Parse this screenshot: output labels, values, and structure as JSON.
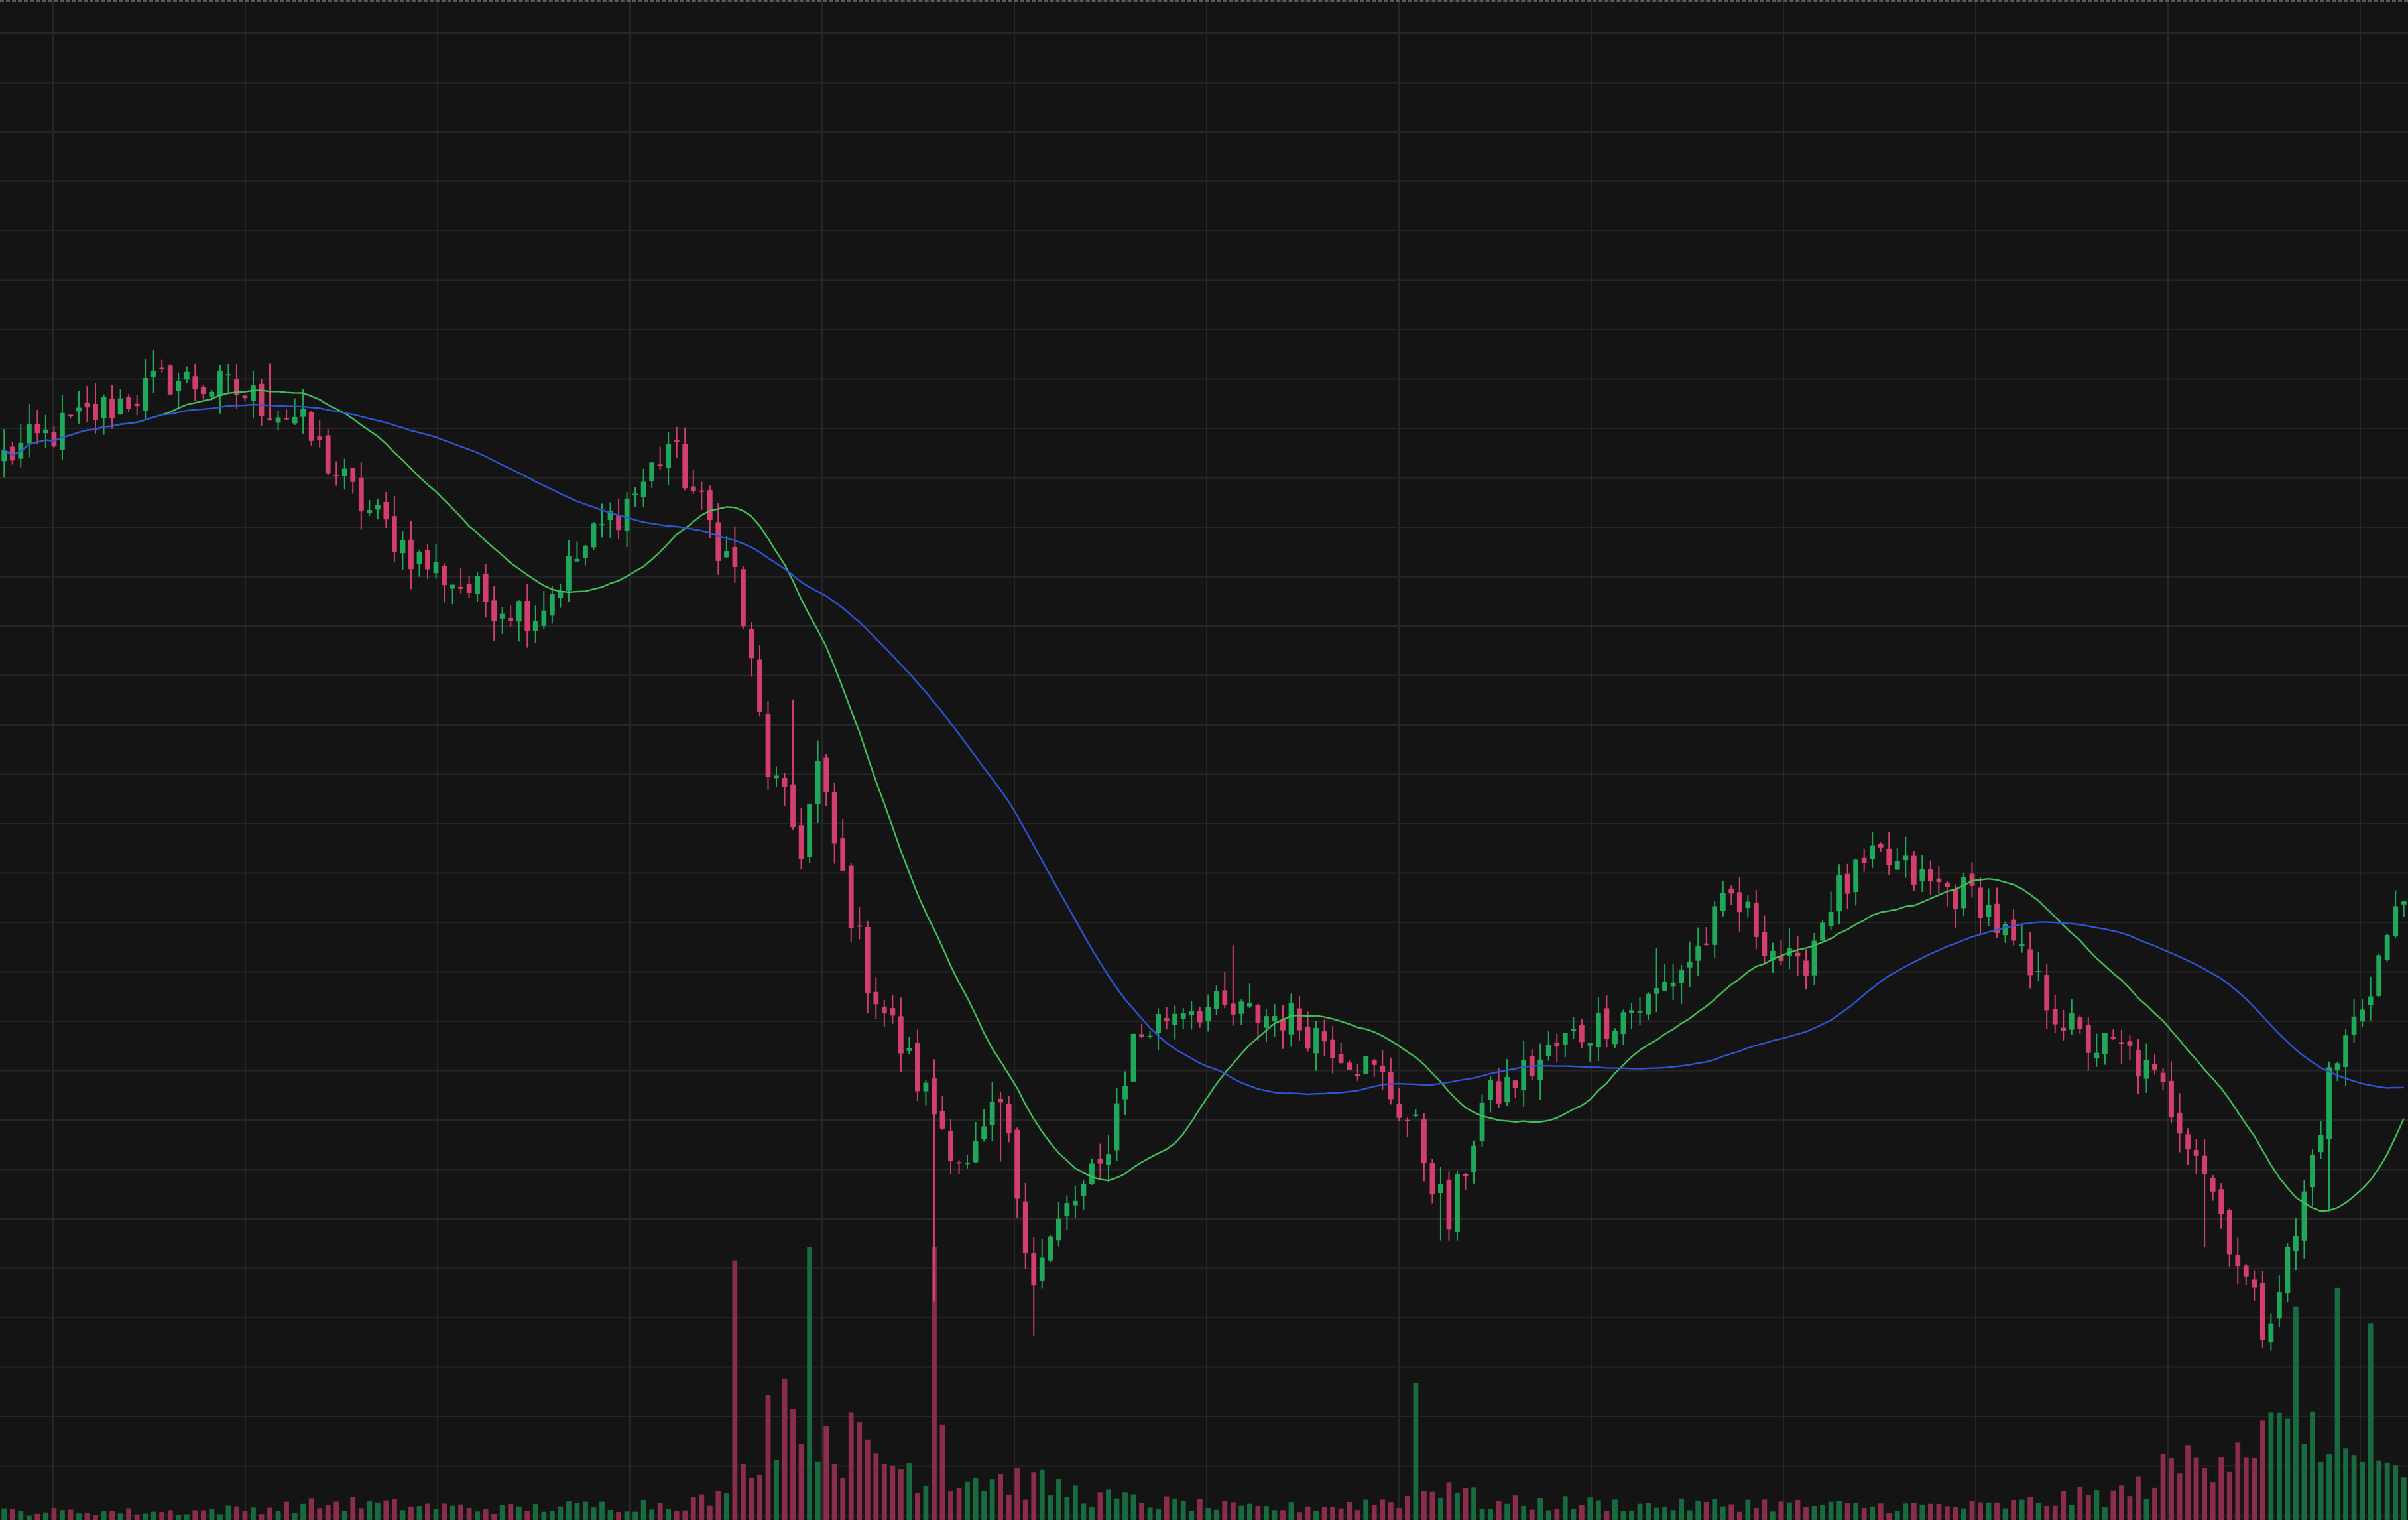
{
  "colors": {
    "background": "#141414",
    "grid": "#262626",
    "up": "#1fa85a",
    "down": "#d23f6d",
    "up_volume": "#176b3e",
    "down_volume": "#8a2d4b",
    "ma_fast": "#3fbf5a",
    "ma_slow": "#2f55d4"
  },
  "chart_data": {
    "type": "candlestick",
    "title": "",
    "xlabel": "",
    "ylabel": "",
    "grid": true,
    "legend": "none",
    "price_range": [
      0,
      100
    ],
    "volume_range": [
      0,
      100
    ],
    "moving_averages": [
      {
        "period": 20,
        "color": "#3fbf5a"
      },
      {
        "period": 50,
        "color": "#2f55d4"
      }
    ],
    "close_anchors": [
      [
        0,
        70
      ],
      [
        10,
        73
      ],
      [
        20,
        76
      ],
      [
        28,
        75
      ],
      [
        35,
        73
      ],
      [
        42,
        67
      ],
      [
        50,
        62
      ],
      [
        58,
        59
      ],
      [
        64,
        58
      ],
      [
        70,
        63
      ],
      [
        77,
        68
      ],
      [
        80,
        71
      ],
      [
        84,
        66
      ],
      [
        88,
        61
      ],
      [
        92,
        46
      ],
      [
        96,
        40
      ],
      [
        98,
        46
      ],
      [
        100,
        40
      ],
      [
        104,
        30
      ],
      [
        110,
        22
      ],
      [
        116,
        15
      ],
      [
        120,
        20
      ],
      [
        124,
        7
      ],
      [
        128,
        12
      ],
      [
        132,
        15
      ],
      [
        136,
        25
      ],
      [
        142,
        28
      ],
      [
        148,
        27
      ],
      [
        154,
        27
      ],
      [
        160,
        25
      ],
      [
        166,
        22
      ],
      [
        170,
        18
      ],
      [
        174,
        11
      ],
      [
        178,
        20
      ],
      [
        182,
        22
      ],
      [
        188,
        25
      ],
      [
        194,
        27
      ],
      [
        198,
        28
      ],
      [
        204,
        32
      ],
      [
        208,
        36
      ],
      [
        212,
        33
      ],
      [
        216,
        30
      ],
      [
        220,
        36
      ],
      [
        226,
        39
      ],
      [
        232,
        37
      ],
      [
        238,
        36
      ],
      [
        244,
        30
      ],
      [
        250,
        25
      ],
      [
        256,
        24
      ],
      [
        260,
        21
      ],
      [
        264,
        17
      ],
      [
        268,
        10
      ],
      [
        272,
        3
      ],
      [
        276,
        10
      ],
      [
        280,
        22
      ],
      [
        284,
        28
      ],
      [
        287,
        33
      ],
      [
        289,
        36
      ]
    ],
    "volume_anchors": [
      [
        0,
        3
      ],
      [
        20,
        3
      ],
      [
        30,
        4
      ],
      [
        40,
        6
      ],
      [
        50,
        5
      ],
      [
        60,
        4
      ],
      [
        70,
        5
      ],
      [
        80,
        6
      ],
      [
        88,
        8
      ],
      [
        92,
        40
      ],
      [
        96,
        50
      ],
      [
        100,
        30
      ],
      [
        104,
        25
      ],
      [
        108,
        20
      ],
      [
        112,
        18
      ],
      [
        116,
        16
      ],
      [
        120,
        15
      ],
      [
        126,
        12
      ],
      [
        132,
        8
      ],
      [
        140,
        6
      ],
      [
        150,
        4
      ],
      [
        160,
        5
      ],
      [
        170,
        8
      ],
      [
        174,
        15
      ],
      [
        178,
        6
      ],
      [
        190,
        6
      ],
      [
        200,
        5
      ],
      [
        210,
        6
      ],
      [
        220,
        5
      ],
      [
        240,
        5
      ],
      [
        256,
        10
      ],
      [
        262,
        20
      ],
      [
        268,
        30
      ],
      [
        274,
        30
      ],
      [
        280,
        25
      ],
      [
        289,
        12
      ]
    ],
    "spike_bars": [
      {
        "i": 88,
        "v": 95
      },
      {
        "i": 97,
        "v": 100
      },
      {
        "i": 112,
        "v": 100
      },
      {
        "i": 113,
        "v": 35
      },
      {
        "i": 170,
        "v": 50
      },
      {
        "i": 276,
        "v": 78
      },
      {
        "i": 281,
        "v": 85
      },
      {
        "i": 285,
        "v": 72
      }
    ],
    "candle_count": 290
  }
}
